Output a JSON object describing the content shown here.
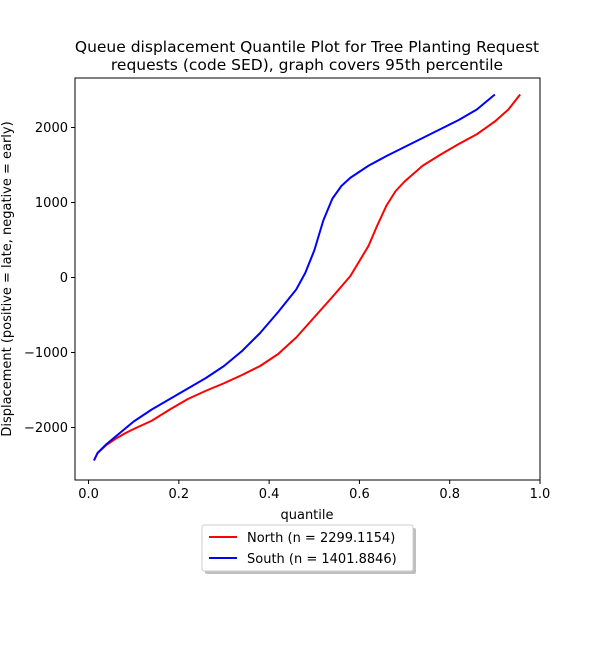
{
  "chart_data": {
    "type": "line",
    "title_line1": "Queue displacement Quantile Plot for Tree Planting Request",
    "title_line2": "requests (code SED), graph covers 95th percentile",
    "xlabel": "quantile",
    "ylabel": "Displacement (positive = late, negative = early)",
    "xlim": [
      -0.03,
      1.0
    ],
    "ylim": [
      -2700,
      2660
    ],
    "xticks": [
      0.0,
      0.2,
      0.4,
      0.6,
      0.8,
      1.0
    ],
    "xtick_labels": [
      "0.0",
      "0.2",
      "0.4",
      "0.6",
      "0.8",
      "1.0"
    ],
    "yticks": [
      -2000,
      -1000,
      0,
      1000,
      2000
    ],
    "ytick_labels": [
      "−2000",
      "−1000",
      "0",
      "1000",
      "2000"
    ],
    "grid": false,
    "legend_position": "below",
    "series": [
      {
        "name": "North (n = 2299.1154)",
        "color": "#ff0000",
        "x": [
          0.012,
          0.02,
          0.04,
          0.06,
          0.08,
          0.1,
          0.14,
          0.18,
          0.22,
          0.26,
          0.3,
          0.34,
          0.38,
          0.42,
          0.46,
          0.5,
          0.54,
          0.58,
          0.62,
          0.64,
          0.66,
          0.68,
          0.7,
          0.74,
          0.78,
          0.82,
          0.86,
          0.9,
          0.93,
          0.956
        ],
        "y": [
          -2440,
          -2340,
          -2230,
          -2150,
          -2080,
          -2020,
          -1910,
          -1760,
          -1620,
          -1510,
          -1410,
          -1300,
          -1180,
          -1020,
          -800,
          -530,
          -260,
          20,
          420,
          700,
          960,
          1150,
          1280,
          1490,
          1640,
          1780,
          1910,
          2080,
          2240,
          2440
        ]
      },
      {
        "name": "South (n = 1401.8846)",
        "color": "#0000ff",
        "x": [
          0.012,
          0.02,
          0.04,
          0.06,
          0.08,
          0.1,
          0.14,
          0.18,
          0.22,
          0.26,
          0.3,
          0.34,
          0.38,
          0.42,
          0.46,
          0.48,
          0.5,
          0.52,
          0.54,
          0.56,
          0.58,
          0.62,
          0.66,
          0.7,
          0.74,
          0.78,
          0.82,
          0.86,
          0.9
        ],
        "y": [
          -2440,
          -2340,
          -2220,
          -2120,
          -2020,
          -1920,
          -1760,
          -1620,
          -1480,
          -1340,
          -1180,
          -980,
          -740,
          -460,
          -160,
          60,
          360,
          760,
          1050,
          1220,
          1330,
          1490,
          1620,
          1740,
          1860,
          1980,
          2100,
          2240,
          2440
        ]
      }
    ]
  }
}
